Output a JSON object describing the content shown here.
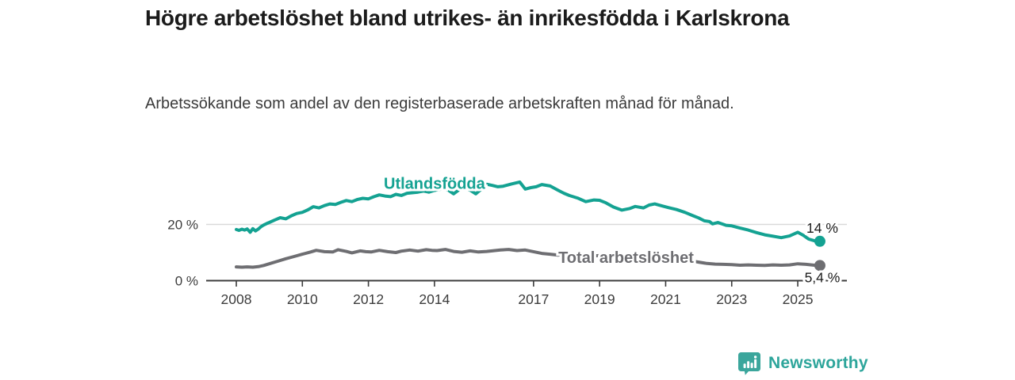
{
  "header": {
    "title": "Högre arbetslöshet bland utrikes- än inrikesfödda i Karlskrona",
    "subtitle": "Arbetssökande som andel av den registerbaserade arbetskraften månad för månad."
  },
  "footer": {
    "brand": "Newsworthy"
  },
  "colors": {
    "accent_teal": "#14a292",
    "series_gray": "#6e6e72",
    "axis": "#3c3c3c",
    "gridline": "#d9d9d9",
    "value_label": "#1b1b1b",
    "brand_teal": "#2da59b"
  },
  "chart_data": {
    "type": "line",
    "title": "Högre arbetslöshet bland utrikes- än inrikesfödda i Karlskrona",
    "subtitle": "Arbetssökande som andel av den registerbaserade arbetskraften månad för månad.",
    "unit": "%",
    "grid": "horizontal-only",
    "legend_position": "inline-labels",
    "x_axis": {
      "range": [
        2007.6,
        2026.2
      ],
      "ticks": [
        2008,
        2010,
        2012,
        2014,
        2017,
        2019,
        2021,
        2023,
        2025
      ]
    },
    "y_axis": {
      "range": [
        0,
        40
      ],
      "ticks": [
        {
          "value": 0,
          "label": "0 %"
        },
        {
          "value": 20,
          "label": "20 %"
        }
      ]
    },
    "series": [
      {
        "name": "Utlandsfödda",
        "color": "#14a292",
        "end_value_label": "14 %",
        "end_label_side": "above",
        "label_pos": {
          "year": 2014.0,
          "value": 34.6
        },
        "points": [
          [
            2008,
            18.2
          ],
          [
            2008.08,
            17.9
          ],
          [
            2008.17,
            18.3
          ],
          [
            2008.25,
            18
          ],
          [
            2008.33,
            18.4
          ],
          [
            2008.42,
            17.2
          ],
          [
            2008.5,
            18.5
          ],
          [
            2008.58,
            17.7
          ],
          [
            2008.67,
            18.4
          ],
          [
            2008.75,
            19.2
          ],
          [
            2008.83,
            19.8
          ],
          [
            2008.92,
            20.3
          ],
          [
            2009,
            20.7
          ],
          [
            2009.17,
            21.6
          ],
          [
            2009.33,
            22.4
          ],
          [
            2009.5,
            22
          ],
          [
            2009.67,
            23.1
          ],
          [
            2009.83,
            23.9
          ],
          [
            2010,
            24.3
          ],
          [
            2010.17,
            25.2
          ],
          [
            2010.33,
            26.3
          ],
          [
            2010.5,
            25.9
          ],
          [
            2010.67,
            26.7
          ],
          [
            2010.83,
            27.3
          ],
          [
            2011,
            27.1
          ],
          [
            2011.17,
            27.9
          ],
          [
            2011.33,
            28.5
          ],
          [
            2011.5,
            28.1
          ],
          [
            2011.67,
            28.9
          ],
          [
            2011.83,
            29.3
          ],
          [
            2012,
            29.1
          ],
          [
            2012.17,
            29.9
          ],
          [
            2012.33,
            30.5
          ],
          [
            2012.5,
            30.1
          ],
          [
            2012.67,
            29.9
          ],
          [
            2012.83,
            30.7
          ],
          [
            2013,
            30.3
          ],
          [
            2013.17,
            31.1
          ],
          [
            2013.5,
            31.5
          ],
          [
            2013.67,
            31.9
          ],
          [
            2013.83,
            31.5
          ],
          [
            2014,
            32.1
          ],
          [
            2014.25,
            32.7
          ],
          [
            2014.42,
            32.2
          ],
          [
            2014.58,
            30.9
          ],
          [
            2014.75,
            32.4
          ],
          [
            2014.92,
            33
          ],
          [
            2015.08,
            32.2
          ],
          [
            2015.25,
            30.9
          ],
          [
            2015.42,
            32.6
          ],
          [
            2015.58,
            34.3
          ],
          [
            2015.75,
            33.9
          ],
          [
            2015.92,
            33.4
          ],
          [
            2016.08,
            33.6
          ],
          [
            2016.33,
            34.4
          ],
          [
            2016.58,
            35.1
          ],
          [
            2016.75,
            32.6
          ],
          [
            2016.92,
            33.1
          ],
          [
            2017.08,
            33.4
          ],
          [
            2017.25,
            34.2
          ],
          [
            2017.5,
            33.7
          ],
          [
            2017.75,
            32.1
          ],
          [
            2017.92,
            31.1
          ],
          [
            2018.08,
            30.3
          ],
          [
            2018.33,
            29.4
          ],
          [
            2018.58,
            28.1
          ],
          [
            2018.83,
            28.7
          ],
          [
            2019,
            28.6
          ],
          [
            2019.17,
            27.8
          ],
          [
            2019.42,
            26.2
          ],
          [
            2019.67,
            25.1
          ],
          [
            2019.92,
            25.7
          ],
          [
            2020.08,
            26.4
          ],
          [
            2020.33,
            25.9
          ],
          [
            2020.5,
            26.9
          ],
          [
            2020.67,
            27.3
          ],
          [
            2020.92,
            26.5
          ],
          [
            2021.08,
            26
          ],
          [
            2021.33,
            25.3
          ],
          [
            2021.58,
            24.3
          ],
          [
            2021.83,
            23.1
          ],
          [
            2022,
            22.3
          ],
          [
            2022.17,
            21.3
          ],
          [
            2022.33,
            21
          ],
          [
            2022.42,
            20.2
          ],
          [
            2022.58,
            20.7
          ],
          [
            2022.83,
            19.7
          ],
          [
            2023,
            19.5
          ],
          [
            2023.25,
            18.7
          ],
          [
            2023.5,
            18
          ],
          [
            2023.75,
            17.1
          ],
          [
            2024,
            16.3
          ],
          [
            2024.25,
            15.8
          ],
          [
            2024.5,
            15.3
          ],
          [
            2024.75,
            15.9
          ],
          [
            2025,
            17.2
          ],
          [
            2025.17,
            16.1
          ],
          [
            2025.33,
            14.8
          ],
          [
            2025.5,
            14.2
          ],
          [
            2025.67,
            14
          ]
        ]
      },
      {
        "name": "Total arbetslöshet",
        "color": "#6e6e72",
        "end_value_label": "5,4 %",
        "end_label_side": "below",
        "label_pos": {
          "year": 2019.8,
          "value": 8.3
        },
        "points": [
          [
            2008,
            4.9
          ],
          [
            2008.17,
            4.8
          ],
          [
            2008.33,
            4.9
          ],
          [
            2008.5,
            4.8
          ],
          [
            2008.67,
            5
          ],
          [
            2008.83,
            5.4
          ],
          [
            2009,
            6
          ],
          [
            2009.25,
            6.9
          ],
          [
            2009.5,
            7.8
          ],
          [
            2009.75,
            8.6
          ],
          [
            2010,
            9.4
          ],
          [
            2010.25,
            10.2
          ],
          [
            2010.42,
            10.8
          ],
          [
            2010.67,
            10.3
          ],
          [
            2010.92,
            10.2
          ],
          [
            2011.08,
            11
          ],
          [
            2011.33,
            10.4
          ],
          [
            2011.5,
            9.9
          ],
          [
            2011.75,
            10.6
          ],
          [
            2011.92,
            10.3
          ],
          [
            2012.08,
            10.2
          ],
          [
            2012.33,
            10.8
          ],
          [
            2012.58,
            10.3
          ],
          [
            2012.83,
            10
          ],
          [
            2013,
            10.5
          ],
          [
            2013.25,
            10.9
          ],
          [
            2013.5,
            10.5
          ],
          [
            2013.75,
            11
          ],
          [
            2013.92,
            10.8
          ],
          [
            2014.08,
            10.7
          ],
          [
            2014.33,
            11.1
          ],
          [
            2014.58,
            10.4
          ],
          [
            2014.83,
            10.1
          ],
          [
            2015.08,
            10.6
          ],
          [
            2015.33,
            10.2
          ],
          [
            2015.58,
            10.4
          ],
          [
            2015.83,
            10.7
          ],
          [
            2016,
            10.9
          ],
          [
            2016.25,
            11.1
          ],
          [
            2016.5,
            10.7
          ],
          [
            2016.75,
            10.9
          ],
          [
            2017,
            10.3
          ],
          [
            2017.25,
            9.7
          ],
          [
            2017.5,
            9.4
          ],
          [
            2017.75,
            9.1
          ],
          [
            2018,
            9.6
          ],
          [
            2018.25,
            9.3
          ],
          [
            2018.5,
            9
          ],
          [
            2018.75,
            8.8
          ],
          [
            2019,
            8.9
          ],
          [
            2019.25,
            8.6
          ],
          [
            2019.5,
            8.3
          ],
          [
            2019.75,
            8.5
          ],
          [
            2020,
            8.6
          ],
          [
            2020.25,
            8.9
          ],
          [
            2020.5,
            9.1
          ],
          [
            2020.75,
            8.8
          ],
          [
            2021,
            8.5
          ],
          [
            2021.25,
            8.1
          ],
          [
            2021.5,
            7.6
          ],
          [
            2021.75,
            7.1
          ],
          [
            2022,
            6.6
          ],
          [
            2022.25,
            6.1
          ],
          [
            2022.5,
            5.9
          ],
          [
            2022.75,
            5.8
          ],
          [
            2023,
            5.7
          ],
          [
            2023.25,
            5.5
          ],
          [
            2023.5,
            5.6
          ],
          [
            2023.75,
            5.5
          ],
          [
            2024,
            5.4
          ],
          [
            2024.25,
            5.6
          ],
          [
            2024.5,
            5.5
          ],
          [
            2024.75,
            5.6
          ],
          [
            2025,
            6
          ],
          [
            2025.25,
            5.8
          ],
          [
            2025.5,
            5.5
          ],
          [
            2025.67,
            5.4
          ]
        ]
      }
    ]
  }
}
